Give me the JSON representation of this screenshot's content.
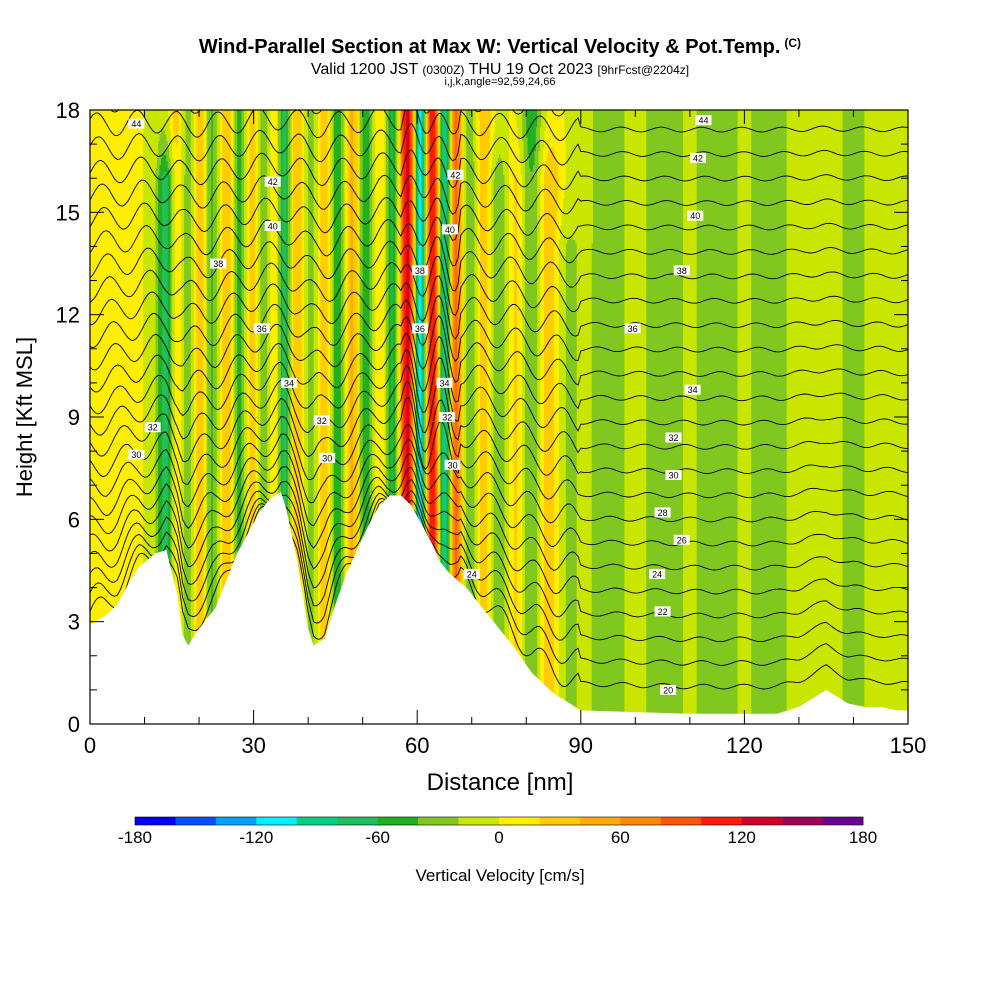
{
  "title": {
    "main": "Wind-Parallel Section at Max W: Vertical Velocity & Pot.Temp.",
    "tag": "(C)",
    "valid_prefix": "Valid 1200 JST",
    "valid_utc": "(0300Z)",
    "valid_date": "THU 19 Oct 2023",
    "forecast": "[9hrFcst@2204z]",
    "indices": "i,j,k,angle=92,59,24,66"
  },
  "colorbar": {
    "label": "Vertical Velocity [cm/s]",
    "ticks": [
      "-180",
      "-120",
      "-60",
      "0",
      "60",
      "120",
      "180"
    ],
    "min": -180,
    "max": 180,
    "step": 20,
    "colors": [
      "#0000ff",
      "#0050ff",
      "#00a0ff",
      "#00f0ff",
      "#00d088",
      "#20c060",
      "#20b020",
      "#80c820",
      "#c8e600",
      "#ffee00",
      "#ffcc00",
      "#ffaa00",
      "#ff8800",
      "#ff5500",
      "#ff1a00",
      "#d0002a",
      "#a0005a",
      "#6a0090"
    ]
  },
  "chart_data": {
    "type": "heatmap",
    "xlabel": "Distance [nm]",
    "ylabel": "Height [Kft MSL]",
    "xlim": [
      0,
      150
    ],
    "ylim": [
      0,
      18
    ],
    "xticks": [
      "0",
      "30",
      "60",
      "90",
      "120",
      "150"
    ],
    "yticks": [
      "0",
      "3",
      "6",
      "9",
      "12",
      "15",
      "18"
    ],
    "terrain": [
      [
        0,
        2.9
      ],
      [
        3,
        3.2
      ],
      [
        5,
        3.5
      ],
      [
        7,
        4.1
      ],
      [
        9,
        4.6
      ],
      [
        12,
        5.0
      ],
      [
        14,
        5.1
      ],
      [
        16,
        3.8
      ],
      [
        17,
        2.6
      ],
      [
        18,
        2.3
      ],
      [
        20,
        2.8
      ],
      [
        23,
        3.4
      ],
      [
        25,
        4.2
      ],
      [
        27,
        5.0
      ],
      [
        29,
        5.6
      ],
      [
        31,
        6.2
      ],
      [
        33,
        6.6
      ],
      [
        35,
        6.8
      ],
      [
        36,
        6.3
      ],
      [
        38,
        4.8
      ],
      [
        39,
        3.8
      ],
      [
        40,
        2.8
      ],
      [
        41,
        2.3
      ],
      [
        43,
        2.5
      ],
      [
        45,
        3.5
      ],
      [
        47,
        4.4
      ],
      [
        49,
        5.1
      ],
      [
        51,
        5.8
      ],
      [
        53,
        6.4
      ],
      [
        55,
        6.7
      ],
      [
        57,
        6.7
      ],
      [
        59,
        6.4
      ],
      [
        61,
        5.8
      ],
      [
        63,
        5.2
      ],
      [
        64,
        4.8
      ],
      [
        66,
        4.4
      ],
      [
        69,
        4.0
      ],
      [
        72,
        3.4
      ],
      [
        75,
        2.8
      ],
      [
        78,
        2.2
      ],
      [
        81,
        1.5
      ],
      [
        85,
        0.9
      ],
      [
        88,
        0.6
      ],
      [
        90,
        0.4
      ],
      [
        100,
        0.35
      ],
      [
        110,
        0.3
      ],
      [
        120,
        0.3
      ],
      [
        126,
        0.3
      ],
      [
        128,
        0.4
      ],
      [
        130,
        0.5
      ],
      [
        133,
        0.8
      ],
      [
        135,
        1.0
      ],
      [
        137,
        0.8
      ],
      [
        139,
        0.6
      ],
      [
        142,
        0.5
      ],
      [
        145,
        0.5
      ],
      [
        148,
        0.4
      ],
      [
        150,
        0.4
      ]
    ],
    "w_features": [
      {
        "x": 14.0,
        "w": -90,
        "width": 1.2,
        "top": 16
      },
      {
        "x": 16.0,
        "w": 60,
        "width": 1.5,
        "top": 18
      },
      {
        "x": 18.0,
        "w": -70,
        "width": 1.5,
        "top": 18
      },
      {
        "x": 20.0,
        "w": 70,
        "width": 1.2,
        "top": 18
      },
      {
        "x": 22.5,
        "w": -60,
        "width": 1.4,
        "top": 18
      },
      {
        "x": 25.0,
        "w": 60,
        "width": 1.4,
        "top": 18
      },
      {
        "x": 27.5,
        "w": -80,
        "width": 1.2,
        "top": 18
      },
      {
        "x": 29.5,
        "w": 60,
        "width": 1.4,
        "top": 18
      },
      {
        "x": 32.0,
        "w": -60,
        "width": 1.4,
        "top": 18
      },
      {
        "x": 34.0,
        "w": 70,
        "width": 1.2,
        "top": 18
      },
      {
        "x": 35.5,
        "w": -110,
        "width": 1.0,
        "top": 18
      },
      {
        "x": 38.0,
        "w": 50,
        "width": 1.5,
        "top": 18
      },
      {
        "x": 40.5,
        "w": -50,
        "width": 1.4,
        "top": 18
      },
      {
        "x": 43.0,
        "w": 50,
        "width": 1.5,
        "top": 18
      },
      {
        "x": 45.5,
        "w": -80,
        "width": 1.2,
        "top": 18
      },
      {
        "x": 48.0,
        "w": 60,
        "width": 1.4,
        "top": 18
      },
      {
        "x": 50.5,
        "w": -70,
        "width": 1.2,
        "top": 18
      },
      {
        "x": 53.5,
        "w": 40,
        "width": 1.5,
        "top": 18
      },
      {
        "x": 55.5,
        "w": -90,
        "width": 1.2,
        "top": 18
      },
      {
        "x": 57.5,
        "w": 90,
        "width": 1.0,
        "top": 18
      },
      {
        "x": 59.0,
        "w": 120,
        "width": 0.9,
        "top": 18
      },
      {
        "x": 60.3,
        "w": -150,
        "width": 1.0,
        "top": 18
      },
      {
        "x": 62.0,
        "w": 40,
        "width": 0.9,
        "top": 18
      },
      {
        "x": 63.2,
        "w": 120,
        "width": 1.0,
        "top": 18
      },
      {
        "x": 65.0,
        "w": -140,
        "width": 1.0,
        "top": 18
      },
      {
        "x": 67.0,
        "w": 110,
        "width": 1.2,
        "top": 18
      },
      {
        "x": 69.5,
        "w": -60,
        "width": 1.4,
        "top": 18
      },
      {
        "x": 72.0,
        "w": 50,
        "width": 1.5,
        "top": 18
      },
      {
        "x": 75.0,
        "w": -50,
        "width": 1.6,
        "top": 16
      },
      {
        "x": 78.0,
        "w": 40,
        "width": 1.8,
        "top": 16
      },
      {
        "x": 81.0,
        "w": -60,
        "width": 1.6,
        "top": 18
      },
      {
        "x": 84.0,
        "w": 50,
        "width": 1.8,
        "top": 16
      },
      {
        "x": 87.0,
        "w": -30,
        "width": 2.0,
        "top": 14
      },
      {
        "x": 95.0,
        "w": -30,
        "width": 3.0,
        "top": 18
      },
      {
        "x": 105.0,
        "w": -30,
        "width": 3.0,
        "top": 18
      },
      {
        "x": 115.0,
        "w": -30,
        "width": 3.5,
        "top": 18
      },
      {
        "x": 125.0,
        "w": -30,
        "width": 3.0,
        "top": 18
      },
      {
        "x": 140.0,
        "w": -25,
        "width": 3.0,
        "top": 18
      }
    ],
    "theta_levels": [
      20,
      21,
      22,
      23,
      24,
      25,
      26,
      27,
      28,
      29,
      30,
      31,
      32,
      33,
      34,
      35,
      36,
      37,
      38,
      39,
      40,
      41,
      42,
      43,
      44
    ],
    "theta_labels": [
      {
        "text": "44",
        "x": 8.5,
        "y": 17.6
      },
      {
        "text": "42",
        "x": 33.5,
        "y": 15.9
      },
      {
        "text": "40",
        "x": 33.5,
        "y": 14.6
      },
      {
        "text": "38",
        "x": 23.5,
        "y": 13.5
      },
      {
        "text": "36",
        "x": 31.5,
        "y": 11.6
      },
      {
        "text": "34",
        "x": 36.5,
        "y": 10.0
      },
      {
        "text": "32",
        "x": 42.5,
        "y": 8.9
      },
      {
        "text": "30",
        "x": 43.5,
        "y": 7.8
      },
      {
        "text": "32",
        "x": 11.5,
        "y": 8.7
      },
      {
        "text": "30",
        "x": 8.5,
        "y": 7.9
      },
      {
        "text": "42",
        "x": 67.0,
        "y": 16.1
      },
      {
        "text": "40",
        "x": 66.0,
        "y": 14.5
      },
      {
        "text": "38",
        "x": 60.5,
        "y": 13.3
      },
      {
        "text": "36",
        "x": 60.5,
        "y": 11.6
      },
      {
        "text": "34",
        "x": 65.0,
        "y": 10.0
      },
      {
        "text": "32",
        "x": 65.5,
        "y": 9.0
      },
      {
        "text": "30",
        "x": 66.5,
        "y": 7.6
      },
      {
        "text": "24",
        "x": 70.0,
        "y": 4.4
      },
      {
        "text": "44",
        "x": 112.5,
        "y": 17.7
      },
      {
        "text": "42",
        "x": 111.5,
        "y": 16.6
      },
      {
        "text": "40",
        "x": 111.0,
        "y": 14.9
      },
      {
        "text": "38",
        "x": 108.5,
        "y": 13.3
      },
      {
        "text": "36",
        "x": 99.5,
        "y": 11.6
      },
      {
        "text": "34",
        "x": 110.5,
        "y": 9.8
      },
      {
        "text": "32",
        "x": 107.0,
        "y": 8.4
      },
      {
        "text": "30",
        "x": 107.0,
        "y": 7.3
      },
      {
        "text": "28",
        "x": 105.0,
        "y": 6.2
      },
      {
        "text": "26",
        "x": 108.5,
        "y": 5.4
      },
      {
        "text": "24",
        "x": 104.0,
        "y": 4.4
      },
      {
        "text": "22",
        "x": 105.0,
        "y": 3.3
      },
      {
        "text": "20",
        "x": 106.0,
        "y": 1.0
      }
    ]
  }
}
